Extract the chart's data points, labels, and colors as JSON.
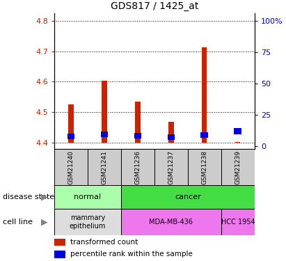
{
  "title": "GDS817 / 1425_at",
  "samples": [
    "GSM21240",
    "GSM21241",
    "GSM21236",
    "GSM21237",
    "GSM21238",
    "GSM21239"
  ],
  "transformed_count": [
    4.525,
    4.602,
    4.535,
    4.468,
    4.712,
    4.403
  ],
  "percentile_rank_pct": [
    8.0,
    9.5,
    8.5,
    7.5,
    9.0,
    12.0
  ],
  "bar_base": 4.4,
  "ylim_left": [
    4.38,
    4.825
  ],
  "ylim_right": [
    -2,
    106
  ],
  "yticks_left": [
    4.4,
    4.5,
    4.6,
    4.7,
    4.8
  ],
  "yticks_right": [
    0,
    25,
    50,
    75,
    100
  ],
  "ytick_labels_right": [
    "0",
    "25",
    "50",
    "75",
    "100%"
  ],
  "left_color": "#cc2200",
  "right_color": "#0000cc",
  "bar_color_red": "#cc2200",
  "bar_color_blue": "#0000dd",
  "disease_normal_color": "#aaffaa",
  "disease_cancer_color": "#44dd44",
  "cell_mammary_color": "#dddddd",
  "cell_mda_color": "#ee77ee",
  "cell_hcc_color": "#ee77ee",
  "bg_sample_color": "#cccccc",
  "legend_red_label": "transformed count",
  "legend_blue_label": "percentile rank within the sample"
}
